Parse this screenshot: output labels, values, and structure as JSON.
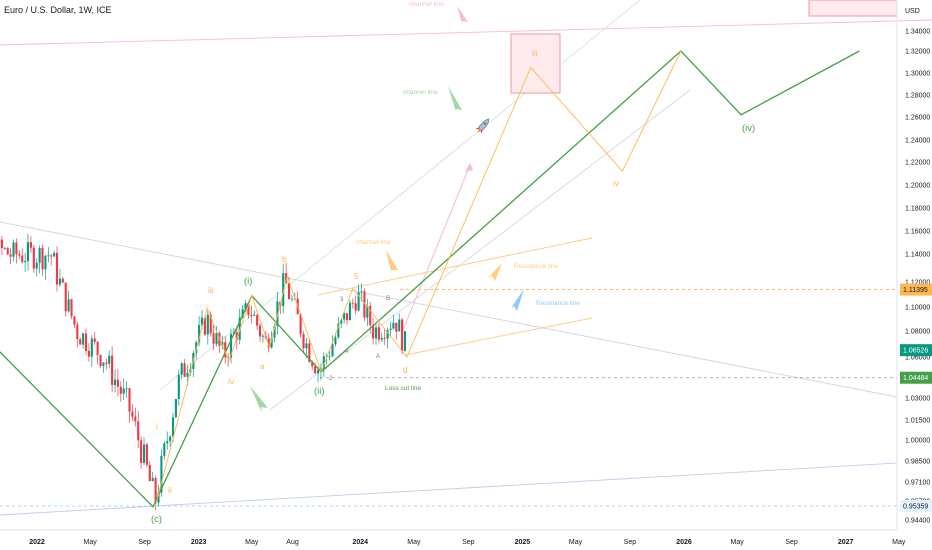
{
  "header": {
    "title": "Euro / U.S. Dollar, 1W, ICE",
    "currency": "USD"
  },
  "colors": {
    "up": "#089981",
    "down": "#f23645",
    "green": "#43a047",
    "orange": "#ffb74d",
    "pink": "#f8bbd0",
    "blue": "#90caf9",
    "grey_line": "#c7cbd6"
  },
  "badges": [
    {
      "label": "1.11395",
      "value": 1.11395,
      "color": "#ffb74d",
      "text_color": "#131722"
    },
    {
      "label": "1.06526",
      "value": 1.06526,
      "color": "#089981",
      "text_color": "#ffffff"
    },
    {
      "label": "1.04484",
      "value": 1.04484,
      "color": "#43a047",
      "text_color": "#ffffff"
    },
    {
      "label": "0.95359",
      "value": 0.95359,
      "color": "#e3f2fd",
      "text_color": "#131722"
    }
  ],
  "annotations": [
    {
      "id": "channel-top",
      "text": "channel line",
      "color": "#f8bbd0"
    },
    {
      "id": "channel-mid",
      "text": "channel line",
      "color": "#a5d6a7"
    },
    {
      "id": "channel-low",
      "text": "channel line",
      "color": "#ffcc80"
    },
    {
      "id": "resistance-orange",
      "text": "Resistance line",
      "color": "#ffcc80"
    },
    {
      "id": "resistance-blue",
      "text": "Resistance line",
      "color": "#90caf9"
    },
    {
      "id": "loss-cut",
      "text": "Loss cut line",
      "color": "#43a047"
    }
  ],
  "wave_labels": [
    {
      "text": "(c)",
      "color": "#43a047"
    },
    {
      "text": "(i)",
      "color": "#43a047"
    },
    {
      "text": "(ii)",
      "color": "#43a047"
    },
    {
      "text": "(iv)",
      "color": "#43a047"
    },
    {
      "text": "i",
      "color": "#ffb74d"
    },
    {
      "text": "ii",
      "color": "#ffb74d"
    },
    {
      "text": "iii",
      "color": "#ffb74d"
    },
    {
      "text": "iv",
      "color": "#ffb74d"
    },
    {
      "text": "iii",
      "color": "#ffb74d"
    },
    {
      "text": "iv",
      "color": "#ffb74d"
    },
    {
      "text": "a",
      "color": "#ffb74d"
    },
    {
      "text": "b",
      "color": "#ffb74d"
    },
    {
      "text": "5",
      "color": "#ffb74d"
    },
    {
      "text": "g",
      "color": "#ffb74d"
    },
    {
      "text": "3",
      "color": "#7a7a7a"
    },
    {
      "text": "4",
      "color": "#7a7a7a"
    },
    {
      "text": "B",
      "color": "#7a7a7a"
    },
    {
      "text": "A",
      "color": "#7a7a7a"
    },
    {
      "text": "2",
      "color": "#7a7a7a"
    }
  ],
  "chart_data": {
    "type": "line",
    "title": "Euro / U.S. Dollar, 1W, ICE",
    "xlabel": "",
    "ylabel": "USD",
    "ylim": [
      0.935,
      1.358
    ],
    "grid": false,
    "y_ticks": [
      "1.34000",
      "1.32000",
      "1.30000",
      "1.28000",
      "1.26000",
      "1.24000",
      "1.22000",
      "1.20000",
      "1.18000",
      "1.16000",
      "1.14000",
      "1.12000",
      "1.10000",
      "1.08000",
      "1.06000",
      "1.03000",
      "1.01500",
      "1.00000",
      "0.98500",
      "0.97100",
      "0.95700",
      "0.94400"
    ],
    "y_tick_values": [
      1.34,
      1.32,
      1.3,
      1.28,
      1.26,
      1.24,
      1.22,
      1.2,
      1.18,
      1.16,
      1.14,
      1.12,
      1.1,
      1.08,
      1.06,
      1.03,
      1.015,
      1.0,
      0.985,
      0.971,
      0.957,
      0.944
    ],
    "x_ticks": [
      "2022",
      "May",
      "Sep",
      "2023",
      "May",
      "Aug",
      "2024",
      "May",
      "Sep",
      "2025",
      "May",
      "Sep",
      "2026",
      "May",
      "Sep",
      "2027",
      "May"
    ],
    "x_tick_dates": [
      "2022-01-01",
      "2022-05-01",
      "2022-09-01",
      "2023-01-01",
      "2023-05-01",
      "2023-08-01",
      "2024-01-01",
      "2024-05-01",
      "2024-09-01",
      "2025-01-01",
      "2025-05-01",
      "2025-09-01",
      "2026-01-01",
      "2026-05-01",
      "2026-09-01",
      "2027-01-01",
      "2027-05-01"
    ],
    "series": [
      {
        "name": "price_path",
        "points": [
          [
            "2021-07-01",
            1.16
          ],
          [
            "2021-11-01",
            1.14
          ],
          [
            "2022-02-01",
            1.14
          ],
          [
            "2022-04-01",
            1.08
          ],
          [
            "2022-06-01",
            1.06
          ],
          [
            "2022-08-01",
            1.02
          ],
          [
            "2022-09-25",
            0.957
          ],
          [
            "2022-11-15",
            1.04
          ],
          [
            "2023-01-20",
            1.09
          ],
          [
            "2023-02-25",
            1.06
          ],
          [
            "2023-04-25",
            1.1
          ],
          [
            "2023-06-01",
            1.07
          ],
          [
            "2023-07-15",
            1.12
          ],
          [
            "2023-09-01",
            1.07
          ],
          [
            "2023-10-01",
            1.05
          ],
          [
            "2023-12-25",
            1.11
          ],
          [
            "2024-02-01",
            1.08
          ],
          [
            "2024-03-20",
            1.09
          ],
          [
            "2024-04-15",
            1.065
          ]
        ]
      },
      {
        "name": "green_wave",
        "points": [
          [
            "2021-07-01",
            1.1
          ],
          [
            "2022-09-20",
            0.953
          ],
          [
            "2023-05-01",
            1.109
          ],
          [
            "2023-10-05",
            1.049
          ],
          [
            "2025-12-25",
            1.36
          ],
          [
            "2026-05-10",
            1.262
          ],
          [
            "2027-02-01",
            1.36
          ]
        ]
      },
      {
        "name": "orange_wave",
        "points": [
          [
            "2022-09-25",
            0.953
          ],
          [
            "2023-01-20",
            1.099
          ],
          [
            "2023-03-10",
            1.057
          ],
          [
            "2023-05-01",
            1.109
          ],
          [
            "2023-06-10",
            1.067
          ],
          [
            "2023-07-20",
            1.124
          ],
          [
            "2023-10-05",
            1.049
          ],
          [
            "2023-12-15",
            1.115
          ],
          [
            "2024-04-15",
            1.06
          ],
          [
            "2025-01-20",
            1.305
          ],
          [
            "2025-08-15",
            1.212
          ],
          [
            "2025-12-25",
            1.36
          ]
        ]
      }
    ],
    "levels": [
      {
        "name": "1.11395",
        "value": 1.11395
      },
      {
        "name": "1.04484",
        "value": 1.04484
      },
      {
        "name": "0.95359",
        "value": 0.95359
      }
    ]
  }
}
